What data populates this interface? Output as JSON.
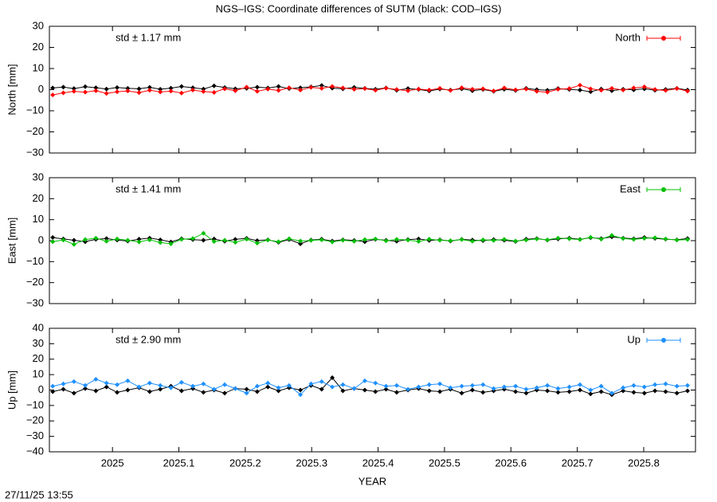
{
  "title": "NGS–IGS: Coordinate differences of SUTM (black: COD–IGS)",
  "timestamp": "27/11/25 13:55",
  "chart_data": [
    {
      "type": "line",
      "ylabel": "North [mm]",
      "annotation": "std ± 1.17 mm",
      "legend": "top-right",
      "xlim": [
        2024.905,
        2025.878
      ],
      "ylim": [
        -30,
        30
      ],
      "yticks": [
        {
          "value": -30,
          "label": "−30"
        },
        {
          "value": -20,
          "label": "−20"
        },
        {
          "value": -10,
          "label": "−10"
        },
        0,
        10,
        20,
        30
      ],
      "x": [
        2024.91,
        2024.926,
        2024.942,
        2024.959,
        2024.975,
        2024.991,
        2025.007,
        2025.023,
        2025.04,
        2025.056,
        2025.072,
        2025.088,
        2025.104,
        2025.121,
        2025.137,
        2025.153,
        2025.169,
        2025.185,
        2025.202,
        2025.218,
        2025.234,
        2025.25,
        2025.266,
        2025.283,
        2025.299,
        2025.315,
        2025.331,
        2025.347,
        2025.364,
        2025.38,
        2025.396,
        2025.412,
        2025.428,
        2025.445,
        2025.461,
        2025.477,
        2025.493,
        2025.509,
        2025.526,
        2025.542,
        2025.558,
        2025.574,
        2025.59,
        2025.607,
        2025.623,
        2025.639,
        2025.655,
        2025.671,
        2025.688,
        2025.704,
        2025.72,
        2025.736,
        2025.752,
        2025.769,
        2025.785,
        2025.801,
        2025.817,
        2025.833,
        2025.85,
        2025.866
      ],
      "series": [
        {
          "name": "North",
          "color": "#ff0000",
          "values": [
            -2.5,
            -1.5,
            -0.8,
            -1.2,
            -0.5,
            -1.8,
            -1.0,
            -0.6,
            -1.4,
            -0.3,
            -1.1,
            -0.7,
            -1.6,
            -0.2,
            -0.9,
            -1.3,
            0.4,
            -0.5,
            1.2,
            -0.8,
            0.3,
            -0.4,
            0.9,
            -0.2,
            1.1,
            0.6,
            1.5,
            0.8,
            0.2,
            0.5,
            -0.3,
            0.7,
            0.1,
            -0.5,
            0.3,
            -0.2,
            0.6,
            -0.4,
            0.9,
            0.2,
            0.4,
            -0.6,
            0.8,
            -0.1,
            0.3,
            -0.8,
            -1.2,
            0.2,
            0.5,
            2.1,
            0.4,
            -0.3,
            0.6,
            -0.2,
            0.8,
            1.3,
            0.1,
            -0.4,
            0.5,
            -0.7
          ]
        },
        {
          "color": "#000000",
          "values": [
            0.8,
            1.2,
            0.5,
            1.4,
            0.9,
            0.3,
            1.0,
            0.6,
            0.4,
            1.1,
            0.2,
            0.7,
            1.5,
            0.9,
            0.3,
            1.8,
            1.0,
            0.4,
            0.6,
            1.2,
            0.8,
            1.5,
            0.5,
            0.9,
            1.3,
            2.0,
            0.7,
            0.4,
            1.1,
            0.6,
            0.2,
            0.8,
            -0.3,
            0.5,
            0.1,
            -0.6,
            0.3,
            -0.2,
            0.4,
            -0.5,
            0.1,
            -0.8,
            0.2,
            -0.4,
            0.6,
            0.0,
            -0.3,
            0.5,
            0.1,
            -0.2,
            -1.0,
            0.3,
            -0.5,
            0.2,
            -0.1,
            0.4,
            -0.3,
            0.1,
            0.6,
            -0.2
          ]
        }
      ]
    },
    {
      "type": "line",
      "ylabel": "East [mm]",
      "annotation": "std ± 1.41 mm",
      "legend": "top-right",
      "xlim": [
        2024.905,
        2025.878
      ],
      "ylim": [
        -30,
        30
      ],
      "yticks": [
        {
          "value": -30,
          "label": "−30"
        },
        {
          "value": -20,
          "label": "−20"
        },
        {
          "value": -10,
          "label": "−10"
        },
        0,
        10,
        20,
        30
      ],
      "x": [
        2024.91,
        2024.926,
        2024.942,
        2024.959,
        2024.975,
        2024.991,
        2025.007,
        2025.023,
        2025.04,
        2025.056,
        2025.072,
        2025.088,
        2025.104,
        2025.121,
        2025.137,
        2025.153,
        2025.169,
        2025.185,
        2025.202,
        2025.218,
        2025.234,
        2025.25,
        2025.266,
        2025.283,
        2025.299,
        2025.315,
        2025.331,
        2025.347,
        2025.364,
        2025.38,
        2025.396,
        2025.412,
        2025.428,
        2025.445,
        2025.461,
        2025.477,
        2025.493,
        2025.509,
        2025.526,
        2025.542,
        2025.558,
        2025.574,
        2025.59,
        2025.607,
        2025.623,
        2025.639,
        2025.655,
        2025.671,
        2025.688,
        2025.704,
        2025.72,
        2025.736,
        2025.752,
        2025.769,
        2025.785,
        2025.801,
        2025.817,
        2025.833,
        2025.85,
        2025.866
      ],
      "series": [
        {
          "name": "East",
          "color": "#00c000",
          "values": [
            -0.5,
            0.3,
            -1.8,
            0.5,
            1.2,
            -0.3,
            0.8,
            0.2,
            -0.6,
            0.4,
            -0.9,
            -1.5,
            0.6,
            1.0,
            3.5,
            -0.4,
            0.2,
            -0.8,
            0.7,
            -1.2,
            0.3,
            -0.5,
            0.9,
            -0.2,
            0.1,
            0.4,
            -0.6,
            0.2,
            -0.3,
            0.5,
            0.8,
            -0.1,
            0.6,
            0.3,
            -0.4,
            0.7,
            0.2,
            0.0,
            0.5,
            -0.3,
            0.4,
            0.1,
            0.6,
            -0.2,
            0.3,
            0.8,
            0.4,
            1.2,
            0.9,
            0.5,
            1.6,
            0.7,
            2.5,
            1.0,
            0.6,
            1.1,
            1.4,
            0.8,
            0.3,
            0.5
          ]
        },
        {
          "color": "#000000",
          "values": [
            1.5,
            0.8,
            0.2,
            -0.5,
            0.6,
            1.0,
            0.3,
            -0.2,
            0.7,
            1.2,
            0.4,
            -0.6,
            0.9,
            0.5,
            0.2,
            0.8,
            -0.3,
            0.6,
            1.1,
            0.0,
            0.4,
            -0.8,
            0.5,
            -1.5,
            0.3,
            0.7,
            -0.2,
            0.4,
            0.1,
            -0.5,
            0.6,
            0.2,
            -0.3,
            0.5,
            0.8,
            0.1,
            0.4,
            -0.2,
            0.6,
            0.3,
            0.0,
            0.5,
            0.2,
            -0.4,
            0.7,
            1.0,
            0.3,
            0.8,
            1.2,
            0.6,
            1.4,
            1.0,
            1.8,
            1.2,
            0.9,
            1.5,
            1.1,
            0.7,
            0.4,
            1.0
          ]
        }
      ]
    },
    {
      "type": "line",
      "ylabel": "Up [mm]",
      "annotation": "std ± 2.90 mm",
      "legend": "top-right",
      "xlabel": "YEAR",
      "xlim": [
        2024.905,
        2025.878
      ],
      "ylim": [
        -40,
        40
      ],
      "xticks": [
        2025,
        2025.1,
        2025.2,
        2025.3,
        2025.4,
        2025.5,
        2025.6,
        2025.7,
        2025.8
      ],
      "yticks": [
        {
          "value": -40,
          "label": "−40"
        },
        {
          "value": -30,
          "label": "−30"
        },
        {
          "value": -20,
          "label": "−20"
        },
        {
          "value": -10,
          "label": "−10"
        },
        0,
        10,
        20,
        30,
        40
      ],
      "x": [
        2024.91,
        2024.926,
        2024.942,
        2024.959,
        2024.975,
        2024.991,
        2025.007,
        2025.023,
        2025.04,
        2025.056,
        2025.072,
        2025.088,
        2025.104,
        2025.121,
        2025.137,
        2025.153,
        2025.169,
        2025.185,
        2025.202,
        2025.218,
        2025.234,
        2025.25,
        2025.266,
        2025.283,
        2025.299,
        2025.315,
        2025.331,
        2025.347,
        2025.364,
        2025.38,
        2025.396,
        2025.412,
        2025.428,
        2025.445,
        2025.461,
        2025.477,
        2025.493,
        2025.509,
        2025.526,
        2025.542,
        2025.558,
        2025.574,
        2025.59,
        2025.607,
        2025.623,
        2025.639,
        2025.655,
        2025.671,
        2025.688,
        2025.704,
        2025.72,
        2025.736,
        2025.752,
        2025.769,
        2025.785,
        2025.801,
        2025.817,
        2025.833,
        2025.85,
        2025.866
      ],
      "series": [
        {
          "name": "Up",
          "color": "#1e90ff",
          "values": [
            2.5,
            4.0,
            5.5,
            3.0,
            7.0,
            4.5,
            3.5,
            6.0,
            2.0,
            4.5,
            3.0,
            1.5,
            5.0,
            2.5,
            4.0,
            0.5,
            3.5,
            1.0,
            -2.0,
            2.5,
            4.5,
            1.5,
            3.0,
            -3.0,
            4.0,
            5.5,
            2.0,
            3.5,
            1.0,
            6.0,
            4.5,
            2.5,
            3.0,
            0.5,
            2.0,
            3.5,
            4.0,
            1.5,
            2.5,
            3.0,
            3.5,
            1.0,
            2.0,
            2.5,
            0.5,
            1.5,
            3.0,
            1.0,
            2.0,
            3.5,
            0.0,
            2.5,
            -2.0,
            1.5,
            3.0,
            2.0,
            3.5,
            4.0,
            2.5,
            3.0
          ]
        },
        {
          "color": "#000000",
          "values": [
            -1.0,
            0.5,
            -2.0,
            1.0,
            -0.5,
            2.0,
            -1.5,
            0.0,
            1.5,
            -1.0,
            0.5,
            2.5,
            -0.5,
            1.0,
            -1.5,
            0.0,
            -2.0,
            1.0,
            0.5,
            -1.0,
            2.0,
            -0.5,
            1.5,
            0.0,
            3.0,
            0.5,
            8.0,
            -0.5,
            1.0,
            0.0,
            -1.0,
            0.5,
            -1.5,
            0.0,
            1.0,
            -0.5,
            -1.0,
            0.5,
            -2.0,
            0.0,
            -1.5,
            -0.5,
            0.5,
            -1.0,
            -2.0,
            0.0,
            -0.5,
            -1.5,
            -1.0,
            0.0,
            -2.5,
            -1.0,
            -3.0,
            -0.5,
            -1.5,
            -2.0,
            -0.5,
            -1.0,
            -2.0,
            -0.5
          ]
        }
      ]
    }
  ]
}
